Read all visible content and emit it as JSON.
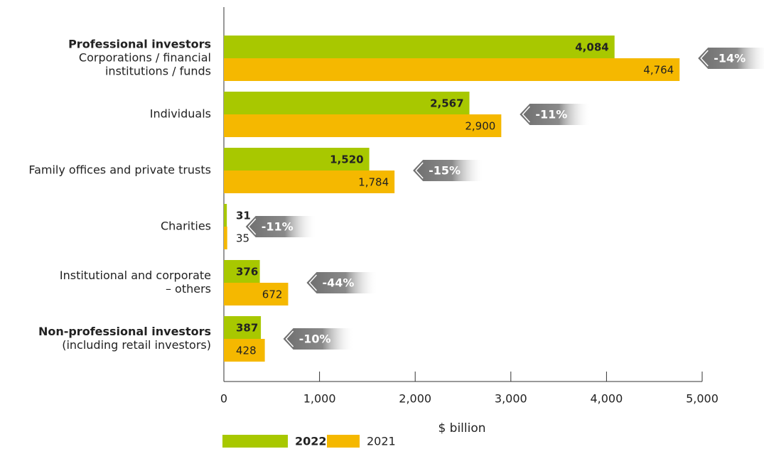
{
  "chart_data": {
    "type": "bar",
    "orientation": "horizontal",
    "categories": [
      {
        "heading": "Professional investors",
        "lines": [
          "Corporations / financial",
          "institutions / funds"
        ]
      },
      {
        "lines": [
          "Individuals"
        ]
      },
      {
        "lines": [
          "Family offices and private trusts"
        ]
      },
      {
        "lines": [
          "Charities"
        ]
      },
      {
        "lines": [
          "Institutional and corporate",
          "– others"
        ]
      },
      {
        "heading": "Non-professional investors",
        "lines": [
          "(including retail investors)"
        ]
      }
    ],
    "series": [
      {
        "name": "2022",
        "color": "#a8c800",
        "values": [
          4084,
          2567,
          1520,
          31,
          376,
          387
        ],
        "value_labels": [
          "4,084",
          "2,567",
          "1,520",
          "31",
          "376",
          "387"
        ]
      },
      {
        "name": "2021",
        "color": "#f5b800",
        "values": [
          4764,
          2900,
          1784,
          35,
          672,
          428
        ],
        "value_labels": [
          "4,764",
          "2,900",
          "1,784",
          "35",
          "672",
          "428"
        ]
      }
    ],
    "changes": [
      -14,
      -11,
      -15,
      -11,
      -44,
      -10
    ],
    "change_labels": [
      "-14%",
      "-11%",
      "-15%",
      "-11%",
      "-44%",
      "-10%"
    ],
    "xlim": [
      0,
      5000
    ],
    "xticks": [
      0,
      {
        "value": 1000,
        "label": "1,000"
      },
      {
        "value": 2000,
        "label": "2,000"
      },
      {
        "value": 3000,
        "label": "3,000"
      },
      {
        "value": 4000,
        "label": "4,000"
      },
      {
        "value": 5000,
        "label": "5,000"
      }
    ],
    "xlabel": "$ billion"
  }
}
